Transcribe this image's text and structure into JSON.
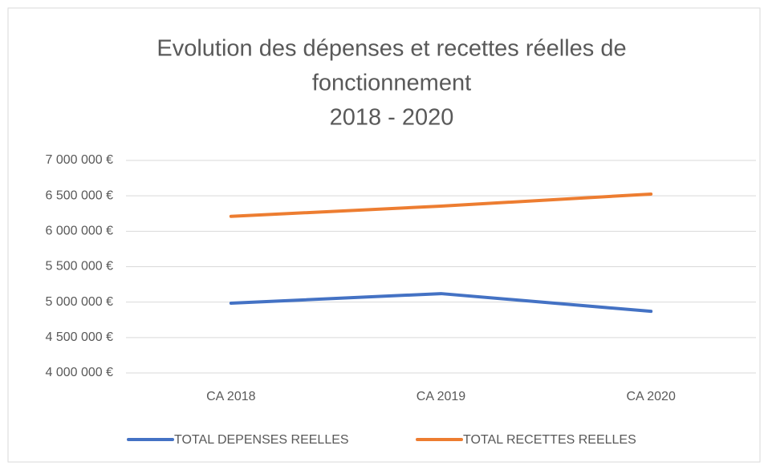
{
  "chart_data": {
    "type": "line",
    "title_lines": [
      "Evolution des dépenses et recettes réelles de",
      "fonctionnement",
      "2018 - 2020"
    ],
    "categories": [
      "CA 2018",
      "CA 2019",
      "CA 2020"
    ],
    "series": [
      {
        "name": "TOTAL DEPENSES REELLES",
        "color": "#4472c4",
        "values": [
          4985000,
          5120000,
          4870000
        ]
      },
      {
        "name": "TOTAL RECETTES REELLES",
        "color": "#ed7d31",
        "values": [
          6210000,
          6355000,
          6525000
        ]
      }
    ],
    "ylim": [
      4000000,
      7000000
    ],
    "yticks": [
      {
        "value": 4000000,
        "label": "4 000 000 €"
      },
      {
        "value": 4500000,
        "label": "4 500 000 €"
      },
      {
        "value": 5000000,
        "label": "5 000 000 €"
      },
      {
        "value": 5500000,
        "label": "5 500 000 €"
      },
      {
        "value": 6000000,
        "label": "6 000 000 €"
      },
      {
        "value": 6500000,
        "label": "6 500 000 €"
      },
      {
        "value": 7000000,
        "label": "7 000 000 €"
      }
    ],
    "grid": true
  }
}
